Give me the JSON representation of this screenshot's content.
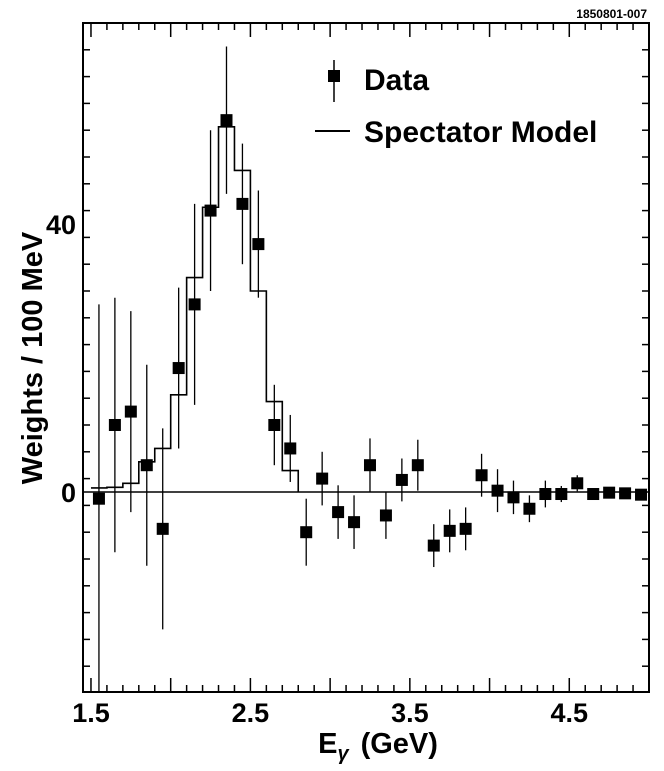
{
  "figure_id": "1850801-007",
  "chart_data": {
    "type": "scatter",
    "xlabel": "E",
    "xlabel_sub": "γ",
    "xlabel_unit": "(GeV)",
    "ylabel": "Weights / 100 MeV",
    "xlim": [
      1.5,
      4.95
    ],
    "ylim": [
      -30,
      70
    ],
    "x_tick_labels": [
      "1.5",
      "2.5",
      "3.5",
      "4.5"
    ],
    "x_tick_values": [
      1.5,
      2.5,
      3.5,
      4.5
    ],
    "y_tick_labels": [
      "0",
      "40"
    ],
    "y_tick_values": [
      0,
      40
    ],
    "zero_line": true,
    "legend": {
      "position": "top-right",
      "data_label": "Data",
      "model_label": "Spectator Model"
    },
    "series": [
      {
        "name": "Data",
        "marker": "square",
        "x": [
          1.55,
          1.65,
          1.75,
          1.85,
          1.95,
          2.05,
          2.15,
          2.25,
          2.35,
          2.45,
          2.55,
          2.65,
          2.75,
          2.85,
          2.95,
          3.05,
          3.15,
          3.25,
          3.35,
          3.45,
          3.55,
          3.65,
          3.75,
          3.85,
          3.95,
          4.05,
          4.15,
          4.25,
          4.35,
          4.45,
          4.55,
          4.65,
          4.75,
          4.85,
          4.95
        ],
        "y": [
          -1,
          10,
          12,
          4,
          -5.5,
          18.5,
          28,
          42,
          55.5,
          43,
          37,
          10,
          6.5,
          -6,
          2,
          -3,
          -4.5,
          4,
          -3.5,
          1.8,
          4,
          -8,
          -5.8,
          -5.5,
          2.5,
          0.2,
          -0.8,
          -2.5,
          -0.3,
          -0.3,
          1.3,
          -0.3,
          -0.1,
          -0.2,
          -0.4
        ],
        "yerr": [
          29,
          19,
          15,
          15,
          15,
          12,
          15,
          12,
          11,
          9,
          8,
          6,
          5,
          5,
          4,
          4,
          4,
          4,
          3.5,
          3.2,
          3.8,
          3.2,
          3.2,
          3.2,
          3.2,
          3.2,
          2.5,
          2,
          2,
          1.2,
          1.2,
          0.8,
          0.8,
          0.6,
          0.6
        ]
      },
      {
        "name": "Spectator Model",
        "step_edges": [
          1.5,
          1.6,
          1.7,
          1.8,
          1.9,
          2.0,
          2.1,
          2.2,
          2.3,
          2.4,
          2.5,
          2.6,
          2.7,
          2.8
        ],
        "step_values": [
          0.6,
          0.7,
          1.3,
          4.5,
          6.5,
          14.5,
          32,
          42.5,
          54.5,
          48,
          30,
          13.5,
          3.2
        ]
      }
    ]
  }
}
